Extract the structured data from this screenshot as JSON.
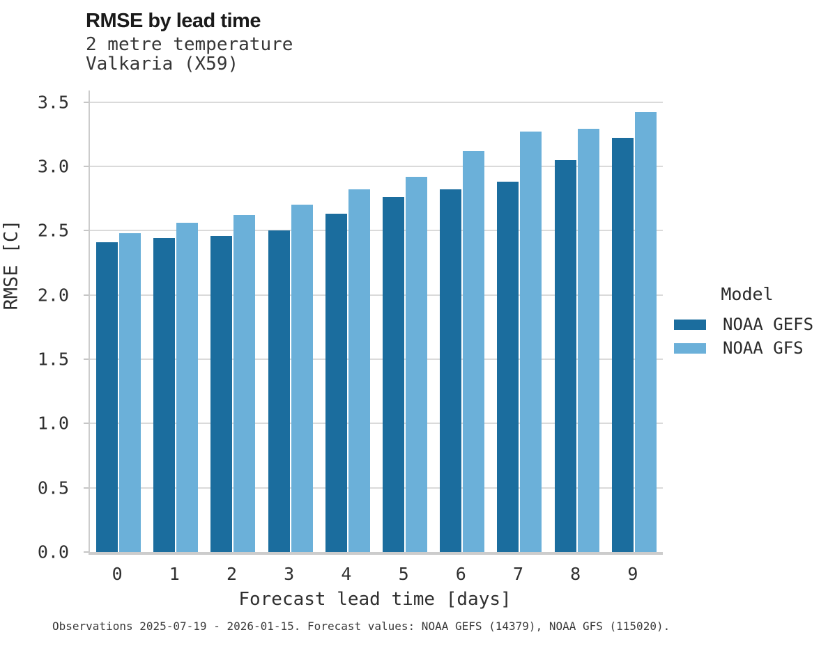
{
  "chart_data": {
    "type": "bar",
    "title": "RMSE by lead time",
    "subtitle": [
      "2 metre temperature",
      "Valkaria (X59)"
    ],
    "xlabel": "Forecast lead time [days]",
    "ylabel": "RMSE [C]",
    "categories": [
      "0",
      "1",
      "2",
      "3",
      "4",
      "5",
      "6",
      "7",
      "8",
      "9"
    ],
    "series": [
      {
        "name": "NOAA GEFS",
        "color": "#1b6d9e",
        "values": [
          2.41,
          2.44,
          2.46,
          2.5,
          2.63,
          2.76,
          2.82,
          2.88,
          3.05,
          3.22
        ]
      },
      {
        "name": "NOAA GFS",
        "color": "#6bb0d9",
        "values": [
          2.48,
          2.56,
          2.62,
          2.7,
          2.82,
          2.92,
          3.12,
          3.27,
          3.29,
          3.42
        ]
      }
    ],
    "ylim": [
      0,
      3.59
    ],
    "yticks": [
      "0.0",
      "0.5",
      "1.0",
      "1.5",
      "2.0",
      "2.5",
      "3.0",
      "3.5"
    ],
    "grid": true,
    "legend": {
      "title": "Model",
      "position": "right"
    }
  },
  "footer": "Observations 2025-07-19 - 2026-01-15. Forecast values: NOAA GEFS (14379), NOAA GFS (115020)."
}
